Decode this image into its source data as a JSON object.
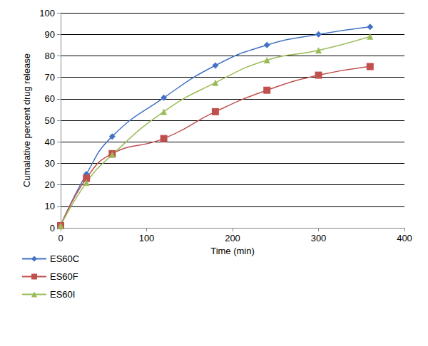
{
  "chart_data": {
    "type": "line",
    "x_label": "Time (min)",
    "y_label": "Cumalative percent drug release",
    "x": [
      0,
      30,
      60,
      120,
      180,
      240,
      300,
      360
    ],
    "series": [
      {
        "name": "ES60C",
        "color": "#4472c4",
        "marker": "diamond",
        "values": [
          1,
          25,
          42.5,
          60.5,
          75.5,
          85,
          90,
          93.5
        ]
      },
      {
        "name": "ES60F",
        "color": "#c0504d",
        "marker": "square",
        "values": [
          1,
          23,
          34.5,
          41.5,
          54,
          64,
          71,
          75
        ]
      },
      {
        "name": "ES60I",
        "color": "#9bbb59",
        "marker": "triangle",
        "values": [
          1,
          21,
          34,
          54,
          67.5,
          78,
          82.5,
          89
        ]
      }
    ],
    "xlim": [
      0,
      400
    ],
    "xticks": [
      0,
      100,
      200,
      300,
      400
    ],
    "ylim": [
      0,
      100
    ],
    "yticks": [
      0,
      10,
      20,
      30,
      40,
      50,
      60,
      70,
      80,
      90,
      100
    ],
    "grid": true,
    "legend": "lower left"
  }
}
